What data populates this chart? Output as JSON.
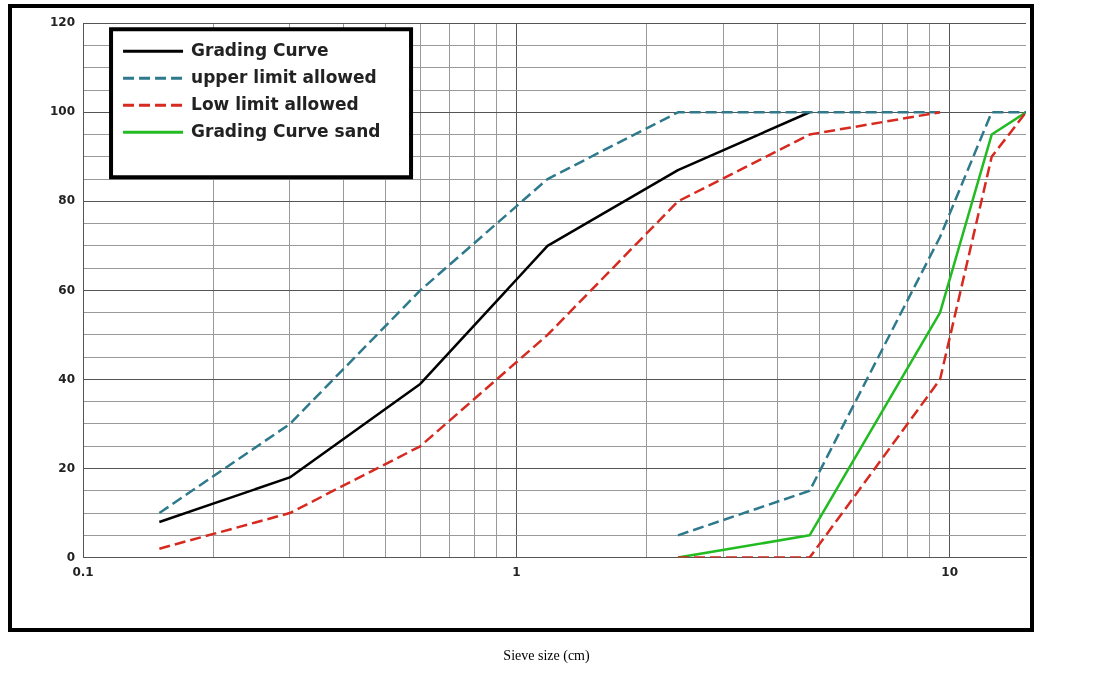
{
  "chart_data": {
    "type": "line",
    "xlabel": "Sieve size (cm)",
    "log": "x",
    "xlim": [
      0.1,
      15
    ],
    "xticks": [
      0.1,
      {
        "value": 0.2,
        "label": null
      },
      {
        "value": 0.3,
        "label": null
      },
      {
        "value": 0.4,
        "label": null
      },
      {
        "value": 0.5,
        "label": null
      },
      {
        "value": 0.6,
        "label": null
      },
      {
        "value": 0.7,
        "label": null
      },
      {
        "value": 0.8,
        "label": null
      },
      {
        "value": 0.9,
        "label": null
      },
      1,
      {
        "value": 2,
        "label": null
      },
      {
        "value": 3,
        "label": null
      },
      {
        "value": 4,
        "label": null
      },
      {
        "value": 5,
        "label": null
      },
      {
        "value": 6,
        "label": null
      },
      {
        "value": 7,
        "label": null
      },
      {
        "value": 8,
        "label": null
      },
      {
        "value": 9,
        "label": null
      },
      10
    ],
    "ylim": [
      0,
      120
    ],
    "yticks": [
      0,
      {
        "value": 5,
        "label": null
      },
      {
        "value": 10,
        "label": null
      },
      {
        "value": 15,
        "label": null
      },
      20,
      {
        "value": 25,
        "label": null
      },
      {
        "value": 30,
        "label": null
      },
      {
        "value": 35,
        "label": null
      },
      40,
      {
        "value": 45,
        "label": null
      },
      {
        "value": 50,
        "label": null
      },
      {
        "value": 55,
        "label": null
      },
      60,
      {
        "value": 65,
        "label": null
      },
      {
        "value": 70,
        "label": null
      },
      {
        "value": 75,
        "label": null
      },
      80,
      {
        "value": 85,
        "label": null
      },
      {
        "value": 90,
        "label": null
      },
      {
        "value": 95,
        "label": null
      },
      100,
      {
        "value": 105,
        "label": null
      },
      {
        "value": 110,
        "label": null
      },
      {
        "value": 115,
        "label": null
      },
      120
    ],
    "grid": true,
    "legend": "top left",
    "marker": "none",
    "series": [
      {
        "name": "Grading Curve",
        "color": "#000000",
        "line_style": "solid",
        "x": [
          0.15,
          0.3,
          0.6,
          1.18,
          2.36,
          4.75
        ],
        "values": [
          8,
          18,
          39,
          70,
          87,
          100
        ]
      },
      {
        "name": "upper limit allowed",
        "color": "#2e7a8c",
        "line_style": "dashed",
        "x": [
          0.15,
          0.3,
          0.6,
          1.18,
          2.36,
          4.75,
          9.5
        ],
        "values": [
          10,
          30,
          60,
          85,
          100,
          100,
          100
        ]
      },
      {
        "name": "Low limit allowed",
        "color": "#d62a20",
        "line_style": "dashed",
        "x": [
          0.15,
          0.3,
          0.6,
          1.18,
          2.36,
          4.75,
          9.5
        ],
        "values": [
          2,
          10,
          25,
          50,
          80,
          95,
          100
        ]
      },
      {
        "name": "Grading Curve sand",
        "color": "#22bb22",
        "line_style": "solid",
        "x": [
          2.36,
          4.75,
          9.5,
          12.5,
          15
        ],
        "values": [
          0,
          5,
          55,
          95,
          100
        ]
      },
      {
        "color": "#2e7a8c",
        "line_style": "dashed",
        "x": [
          2.36,
          4.75,
          9.5,
          12.5,
          15
        ],
        "values": [
          5,
          15,
          72,
          100,
          100
        ]
      },
      {
        "color": "#d62a20",
        "line_style": "dashed",
        "x": [
          2.36,
          4.75,
          9.5,
          12.5,
          15
        ],
        "values": [
          0,
          0,
          40,
          90,
          100
        ]
      }
    ]
  }
}
